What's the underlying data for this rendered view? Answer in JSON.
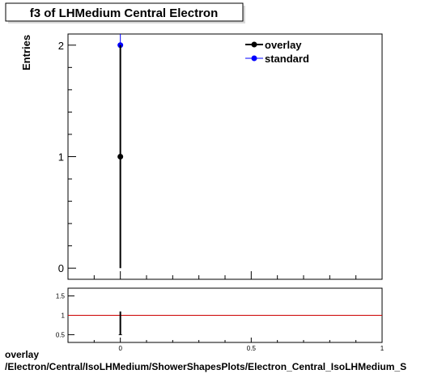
{
  "chart_data": [
    {
      "type": "scatter",
      "title": "f3 of LHMedium Central  Electron",
      "ylabel": "Entries",
      "xlim": [
        -0.2,
        1.0
      ],
      "ylim": [
        -0.1,
        2.1
      ],
      "yticks": [
        0,
        1,
        2
      ],
      "ytick_labels": [
        "0",
        "1",
        "2"
      ],
      "legend_position": "top-right",
      "series": [
        {
          "name": "overlay",
          "color": "#000000",
          "points": [
            {
              "x": 0.0,
              "y": 1,
              "yerr": 1
            }
          ]
        },
        {
          "name": "standard",
          "color": "#0000ff",
          "points": [
            {
              "x": 0.0,
              "y": 2,
              "yerr": 1.414
            }
          ]
        }
      ]
    },
    {
      "type": "scatter",
      "title": "",
      "xlim": [
        -0.2,
        1.0
      ],
      "ylim": [
        0.3,
        1.7
      ],
      "xticks": [
        0,
        0.5,
        1
      ],
      "xtick_labels": [
        "0",
        "0.5",
        "1"
      ],
      "yticks": [
        0.5,
        1,
        1.5
      ],
      "ytick_labels": [
        "0.5",
        "1",
        "1.5"
      ],
      "reference_line": {
        "y": 1,
        "color": "#cc0000"
      },
      "series": [
        {
          "name": "ratio",
          "color": "#000000",
          "points": [
            {
              "x": 0.0,
              "y": 0.5,
              "yerr_low": 0.0,
              "yerr_high": 0.6
            }
          ]
        }
      ]
    }
  ],
  "footer": {
    "line1": "overlay",
    "line2": "/Electron/Central/IsoLHMedium/ShowerShapesPlots/Electron_Central_IsoLHMedium_S"
  }
}
